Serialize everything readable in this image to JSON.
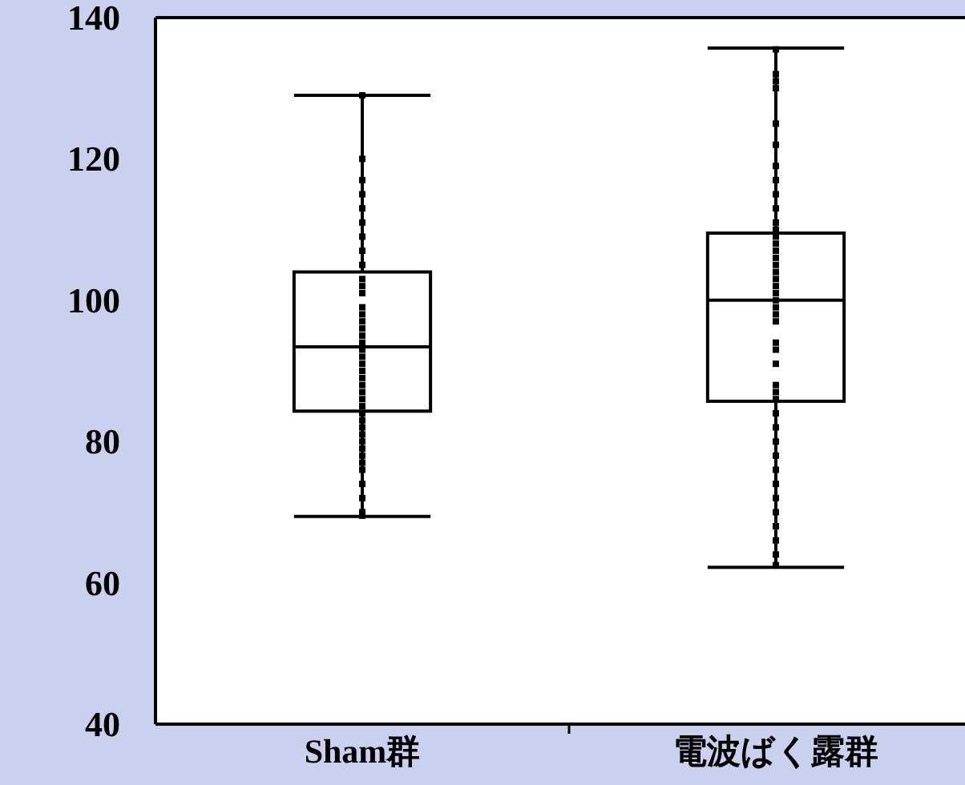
{
  "chart_data": {
    "type": "box",
    "categories": [
      "Sham群",
      "電波ばく露群"
    ],
    "boxes": [
      {
        "low": 69.4,
        "q1": 84.3,
        "median": 93.4,
        "q3": 104,
        "high": 129
      },
      {
        "low": 62.2,
        "q1": 85.7,
        "median": 100,
        "q3": 109.5,
        "high": 135.7
      }
    ],
    "ylim": [
      40,
      140
    ],
    "yticks": [
      40,
      60,
      80,
      100,
      120,
      140
    ],
    "grid": false,
    "series": [
      {
        "type": "scatter",
        "color": "#000000",
        "marker": "square",
        "x": [
          "Sham群",
          "Sham群",
          "Sham群",
          "Sham群",
          "Sham群",
          "Sham群",
          "Sham群",
          "Sham群",
          "Sham群",
          "Sham群",
          "Sham群",
          "Sham群",
          "Sham群",
          "Sham群",
          "Sham群",
          "Sham群",
          "Sham群",
          "Sham群",
          "Sham群",
          "Sham群",
          "Sham群",
          "Sham群",
          "Sham群",
          "Sham群",
          "Sham群",
          "Sham群",
          "Sham群",
          "Sham群",
          "Sham群",
          "Sham群",
          "Sham群",
          "Sham群",
          "Sham群",
          "Sham群",
          "Sham群",
          "Sham群",
          "Sham群",
          "Sham群",
          "Sham群",
          "Sham群",
          "電波ばく露群",
          "電波ばく露群",
          "電波ばく露群",
          "電波ばく露群",
          "電波ばく露群",
          "電波ばく露群",
          "電波ばく露群",
          "電波ばく露群",
          "電波ばく露群",
          "電波ばく露群",
          "電波ばく露群",
          "電波ばく露群",
          "電波ばく露群",
          "電波ばく露群",
          "電波ばく露群",
          "電波ばく露群",
          "電波ばく露群",
          "電波ばく露群",
          "電波ばく露群",
          "電波ばく露群",
          "電波ばく露群",
          "電波ばく露群",
          "電波ばく露群",
          "電波ばく露群",
          "電波ばく露群",
          "電波ばく露群",
          "電波ばく露群",
          "電波ばく露群",
          "電波ばく露群",
          "電波ばく露群",
          "電波ばく露群",
          "電波ばく露群",
          "電波ばく露群",
          "電波ばく露群",
          "電波ばく露群",
          "電波ばく露群",
          "電波ばく露群",
          "電波ばく露群",
          "電波ばく露群",
          "電波ばく露群",
          "電波ばく露群",
          "電波ばく露群",
          "電波ばく露群"
        ],
        "values": [
          129,
          120,
          117,
          115,
          113,
          111,
          109,
          107,
          105,
          103,
          102,
          101,
          99,
          98,
          97,
          96,
          95,
          94,
          93,
          92,
          91,
          90,
          89,
          88,
          87,
          86,
          85,
          84,
          83,
          82,
          81,
          80,
          79,
          78,
          77,
          76,
          74,
          72,
          70,
          69.5,
          135.5,
          132,
          131,
          130,
          125,
          122,
          119,
          117,
          115,
          113,
          111,
          110,
          109,
          108,
          107,
          106,
          105,
          104,
          103,
          102,
          101,
          100,
          99,
          98,
          97,
          94,
          93,
          91,
          88,
          87,
          86,
          84,
          82,
          80,
          78,
          76,
          74,
          72,
          70,
          68,
          66,
          64,
          62.5
        ]
      }
    ]
  }
}
